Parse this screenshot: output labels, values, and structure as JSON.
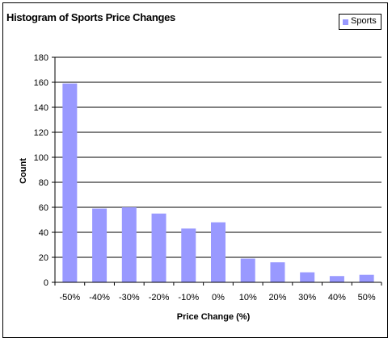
{
  "chart_data": {
    "type": "bar",
    "title": "Histogram of Sports Price Changes",
    "xlabel": "Price Change (%)",
    "ylabel": "Count",
    "categories": [
      "-50%",
      "-40%",
      "-30%",
      "-20%",
      "-10%",
      "0%",
      "10%",
      "20%",
      "30%",
      "40%",
      "50%"
    ],
    "series": [
      {
        "name": "Sports",
        "values": [
          159,
          59,
          60,
          55,
          43,
          48,
          19,
          16,
          8,
          5,
          6
        ]
      }
    ],
    "ylim": [
      0,
      180
    ],
    "yticks": [
      0,
      20,
      40,
      60,
      80,
      100,
      120,
      140,
      160,
      180
    ],
    "grid": true,
    "legend_position": "top-right",
    "bar_color": "#9999ff"
  }
}
